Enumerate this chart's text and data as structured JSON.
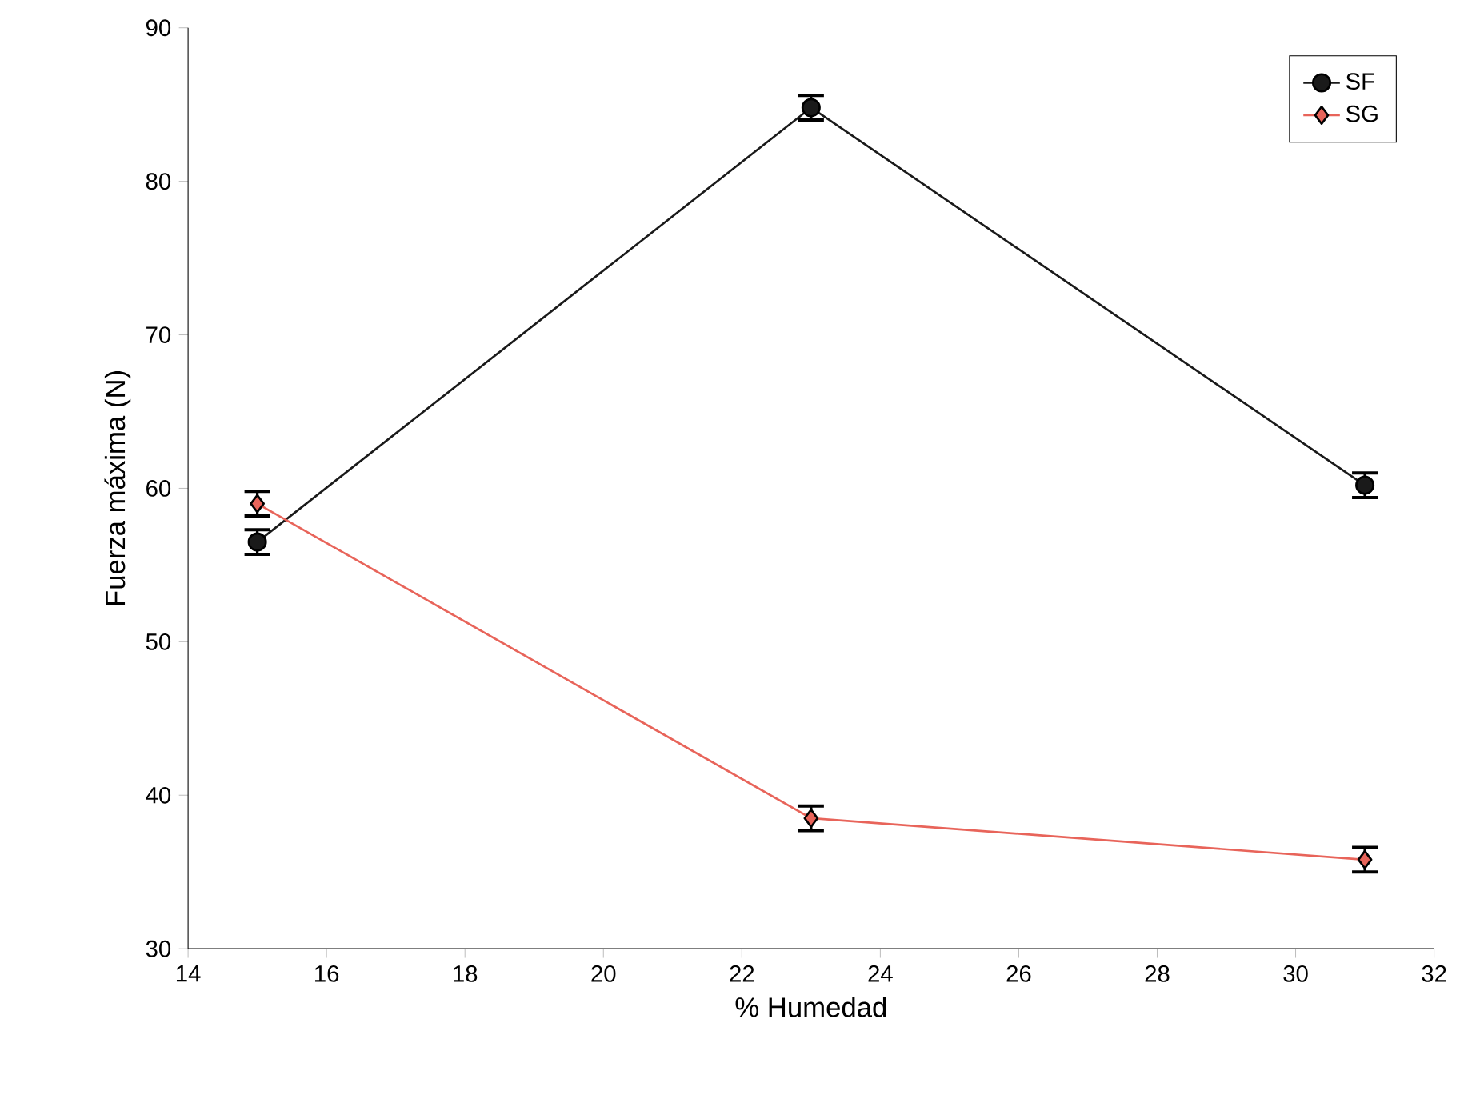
{
  "chart_data": {
    "type": "line",
    "xlabel": "% Humedad",
    "ylabel": "Fuerza máxima (N)",
    "x": [
      15,
      23,
      31
    ],
    "series": [
      {
        "name": "SF",
        "color": "#1a1a1a",
        "marker": "circle",
        "values": [
          56.5,
          84.8,
          60.2
        ],
        "errors": [
          0.8,
          0.8,
          0.8
        ]
      },
      {
        "name": "SG",
        "color": "#e8645a",
        "marker": "diamond",
        "values": [
          59.0,
          38.5,
          35.8
        ],
        "errors": [
          0.8,
          0.8,
          0.8
        ]
      }
    ],
    "xlim": [
      14,
      32
    ],
    "xticks": [
      14,
      16,
      18,
      20,
      22,
      24,
      26,
      28,
      30,
      32
    ],
    "ylim": [
      30,
      90
    ],
    "yticks": [
      30,
      40,
      50,
      60,
      70,
      80,
      90
    ],
    "legend": "top right",
    "grid": false,
    "line_style": "solid"
  }
}
